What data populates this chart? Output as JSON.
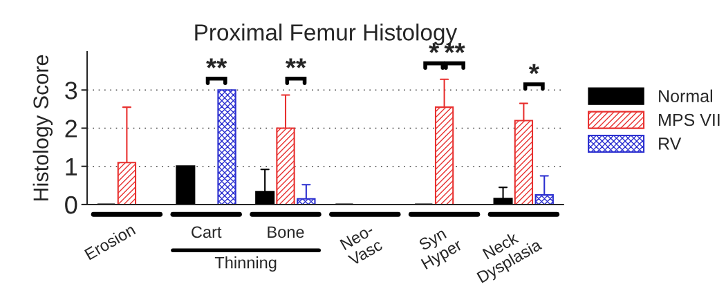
{
  "chart_data": {
    "type": "bar",
    "title": "Proximal Femur Histology",
    "ylabel": "Histology Score",
    "categories": [
      "Erosion",
      "Cart",
      "Bone",
      "Neo-\nVasc",
      "Syn\nHyper",
      "Neck\nDysplasia"
    ],
    "series": [
      {
        "name": "Normal",
        "color": "#000000",
        "values": [
          0,
          1,
          0.33,
          0,
          0,
          0.15
        ],
        "errors": [
          null,
          null,
          [
            0.33,
            0.92
          ],
          null,
          null,
          [
            0.15,
            0.45
          ]
        ]
      },
      {
        "name": "MPS VII",
        "color": "#e8302f",
        "values": [
          1.1,
          0,
          2.0,
          0,
          2.55,
          2.2
        ],
        "errors": [
          [
            1.1,
            2.55
          ],
          null,
          [
            2.0,
            2.87
          ],
          null,
          [
            2.55,
            3.28
          ],
          [
            2.2,
            2.65
          ]
        ]
      },
      {
        "name": "RV",
        "color": "#2b2fd0",
        "values": [
          0,
          3,
          0.15,
          0,
          0,
          0.25
        ],
        "errors": [
          null,
          null,
          [
            0.15,
            0.52
          ],
          null,
          null,
          [
            0.25,
            0.75
          ]
        ]
      }
    ],
    "ylim": [
      0,
      4
    ],
    "yticks": [
      0,
      1,
      2,
      3
    ],
    "grid": "y",
    "legend": "right",
    "annotations": [
      "**",
      "**",
      "*",
      "**",
      "*",
      "Thinning"
    ]
  }
}
